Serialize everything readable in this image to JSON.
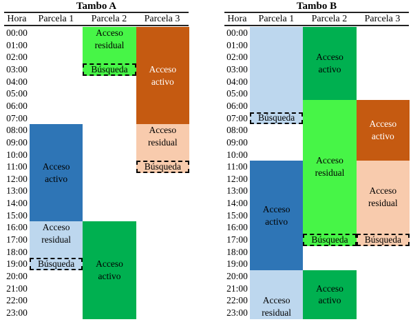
{
  "palette": {
    "active_blue": "#2E75B6",
    "residual_blue": "#BDD7EE",
    "active_green": "#00B050",
    "residual_green": "#47F547",
    "active_orange": "#C55A11",
    "residual_orange": "#F8CBAD",
    "rule_color": "#222222",
    "background": "#FFFFFF",
    "text_black": "#000000",
    "text_white": "#FFFFFF"
  },
  "labels": {
    "active": "Acceso activo",
    "residual": "Acceso residual",
    "search": "Búsqueda"
  },
  "chart_data": {
    "type": "table",
    "hours": [
      "00:00",
      "01:00",
      "02:00",
      "03:00",
      "04:00",
      "05:00",
      "06:00",
      "07:00",
      "08:00",
      "09:00",
      "10:00",
      "11:00",
      "12:00",
      "13:00",
      "14:00",
      "15:00",
      "16:00",
      "17:00",
      "18:00",
      "19:00",
      "20:00",
      "21:00",
      "22:00",
      "23:00"
    ],
    "tables": [
      {
        "title": "Tambo A",
        "columns": [
          "Hora",
          "Parcela 1",
          "Parcela 2",
          "Parcela 3"
        ],
        "blocks": [
          {
            "col": 1,
            "start": 8,
            "end": 16,
            "label": "Acceso activo",
            "fill": "active_blue",
            "dashed": false,
            "label_pos": "center"
          },
          {
            "col": 1,
            "start": 16,
            "end": 19,
            "label": "Acceso residual",
            "fill": "residual_blue",
            "dashed": false,
            "label_pos": "top"
          },
          {
            "col": 1,
            "start": 19,
            "end": 20,
            "label": "Búsqueda",
            "fill": "residual_blue",
            "dashed": true,
            "label_pos": "center"
          },
          {
            "col": 2,
            "start": 0,
            "end": 3,
            "label": "Acceso residual",
            "fill": "residual_green",
            "dashed": false,
            "label_pos": "top"
          },
          {
            "col": 2,
            "start": 3,
            "end": 4,
            "label": "Búsqueda",
            "fill": "residual_green",
            "dashed": true,
            "label_pos": "center"
          },
          {
            "col": 2,
            "start": 16,
            "end": 24,
            "label": "Acceso activo",
            "fill": "active_green",
            "dashed": false,
            "label_pos": "center"
          },
          {
            "col": 3,
            "start": 0,
            "end": 8,
            "label": "Acceso activo",
            "fill": "active_orange",
            "dashed": false,
            "label_pos": "center",
            "text_color": "#FFFFFF"
          },
          {
            "col": 3,
            "start": 8,
            "end": 11,
            "label": "Acceso residual",
            "fill": "residual_orange",
            "dashed": false,
            "label_pos": "top"
          },
          {
            "col": 3,
            "start": 11,
            "end": 12,
            "label": "Búsqueda",
            "fill": "residual_orange",
            "dashed": true,
            "label_pos": "center"
          }
        ]
      },
      {
        "title": "Tambo B",
        "columns": [
          "Hora",
          "Parcela 1",
          "Parcela 2",
          "Parcela 3"
        ],
        "blocks": [
          {
            "col": 1,
            "start": 0,
            "end": 7,
            "label": "",
            "fill": "residual_blue",
            "dashed": false,
            "label_pos": "center"
          },
          {
            "col": 1,
            "start": 7,
            "end": 8,
            "label": "Búsqueda",
            "fill": "residual_blue",
            "dashed": true,
            "label_pos": "center"
          },
          {
            "col": 1,
            "start": 11,
            "end": 20,
            "label": "Acceso activo",
            "fill": "active_blue",
            "dashed": false,
            "label_pos": "center"
          },
          {
            "col": 1,
            "start": 20,
            "end": 24,
            "label": "Acceso residual",
            "fill": "residual_blue",
            "dashed": false,
            "label_pos": "bottom"
          },
          {
            "col": 2,
            "start": 0,
            "end": 6,
            "label": "Acceso activo",
            "fill": "active_green",
            "dashed": false,
            "label_pos": "center"
          },
          {
            "col": 2,
            "start": 6,
            "end": 17,
            "label": "Acceso residual",
            "fill": "residual_green",
            "dashed": false,
            "label_pos": "center"
          },
          {
            "col": 2,
            "start": 17,
            "end": 18,
            "label": "Búsqueda",
            "fill": "residual_green",
            "dashed": true,
            "label_pos": "center"
          },
          {
            "col": 2,
            "start": 20,
            "end": 24,
            "label": "Acceso activo",
            "fill": "active_green",
            "dashed": false,
            "label_pos": "center"
          },
          {
            "col": 3,
            "start": 6,
            "end": 11,
            "label": "Acceso activo",
            "fill": "active_orange",
            "dashed": false,
            "label_pos": "center",
            "text_color": "#FFFFFF"
          },
          {
            "col": 3,
            "start": 11,
            "end": 17,
            "label": "Acceso residual",
            "fill": "residual_orange",
            "dashed": false,
            "label_pos": "center"
          },
          {
            "col": 3,
            "start": 17,
            "end": 18,
            "label": "Búsqueda",
            "fill": "residual_orange",
            "dashed": true,
            "label_pos": "center"
          }
        ]
      }
    ]
  }
}
